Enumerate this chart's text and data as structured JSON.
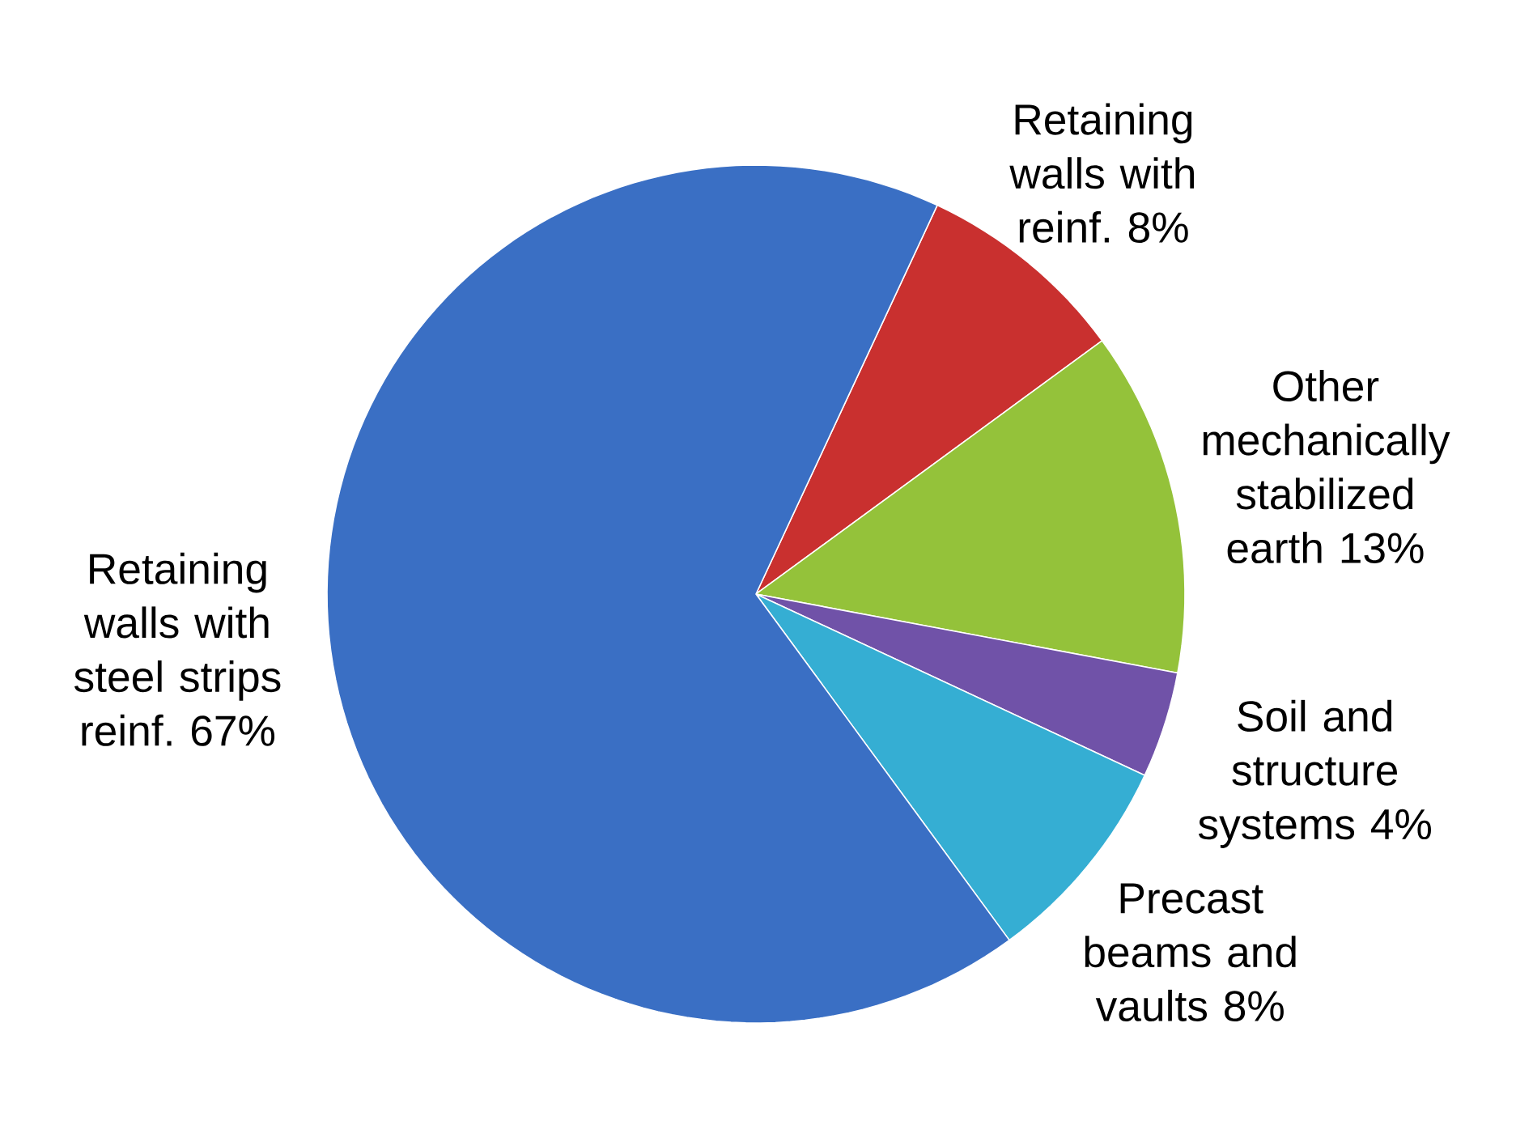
{
  "chart_data": {
    "type": "pie",
    "categories": [
      "Retaining walls with reinf.",
      "Other mechanically stabilized earth",
      "Soil and structure systems",
      "Precast beams and vaults",
      "Retaining walls with steel strips reinf."
    ],
    "values": [
      8,
      13,
      4,
      8,
      67
    ],
    "value_labels": [
      "8%",
      "13%",
      "4%",
      "8%",
      "67%"
    ],
    "colors": [
      "#c9302f",
      "#94c23a",
      "#7052a8",
      "#35aed3",
      "#3a6fc4"
    ]
  }
}
